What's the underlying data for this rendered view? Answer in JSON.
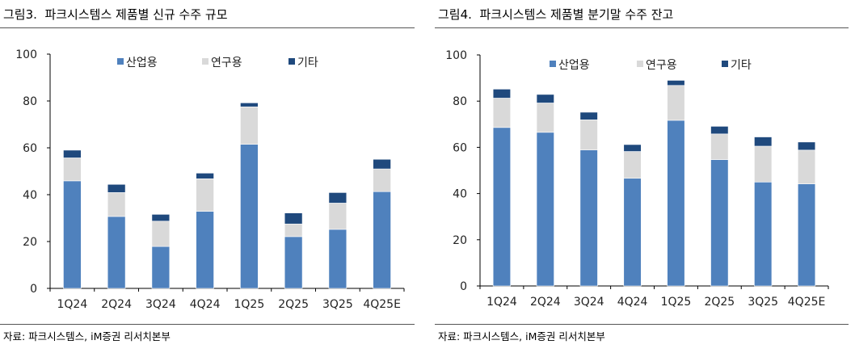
{
  "colors": {
    "industrial": "#4f81bd",
    "research": "#d9d9d9",
    "other": "#1f497d"
  },
  "chart_data": [
    {
      "type": "bar",
      "stacked": true,
      "title": "그림3.  파크시스템스 제품별 신규 수주 규모",
      "source": "자료: 파크시스템스, iM증권 리서치본부",
      "categories": [
        "1Q24",
        "2Q24",
        "3Q24",
        "4Q24",
        "1Q25",
        "2Q25",
        "3Q25",
        "4Q25E"
      ],
      "ylim": [
        0,
        100
      ],
      "yticks": [
        0,
        20,
        40,
        60,
        80,
        100
      ],
      "legend_position": "top",
      "grid": false,
      "series": [
        {
          "name": "산업용",
          "values": [
            45.9,
            30.7,
            17.9,
            32.9,
            61.5,
            22.1,
            25.2,
            41.3
          ]
        },
        {
          "name": "연구용",
          "values": [
            9.8,
            10.2,
            10.8,
            13.9,
            16.0,
            5.4,
            11.2,
            9.7
          ]
        },
        {
          "name": "기타",
          "values": [
            3.3,
            3.5,
            2.9,
            2.4,
            1.7,
            4.7,
            4.5,
            4.1
          ]
        }
      ]
    },
    {
      "type": "bar",
      "stacked": true,
      "title": "그림4.  파크시스템스 제품별 분기말 수주 잔고",
      "source": "자료: 파크시스템스, iM증권 리서치본부",
      "categories": [
        "1Q24",
        "2Q24",
        "3Q24",
        "4Q24",
        "1Q25",
        "2Q25",
        "3Q25",
        "4Q25E"
      ],
      "ylim": [
        0,
        100
      ],
      "yticks": [
        0,
        20,
        40,
        60,
        80,
        100
      ],
      "legend_position": "top",
      "grid": false,
      "series": [
        {
          "name": "산업용",
          "values": [
            68.6,
            66.5,
            58.9,
            46.6,
            71.7,
            54.7,
            45.0,
            44.2
          ]
        },
        {
          "name": "연구용",
          "values": [
            12.7,
            12.7,
            13.0,
            11.6,
            15.1,
            11.1,
            15.5,
            14.6
          ]
        },
        {
          "name": "기타",
          "values": [
            3.9,
            3.7,
            3.3,
            3.0,
            2.2,
            3.3,
            4.0,
            3.5
          ]
        }
      ]
    }
  ]
}
